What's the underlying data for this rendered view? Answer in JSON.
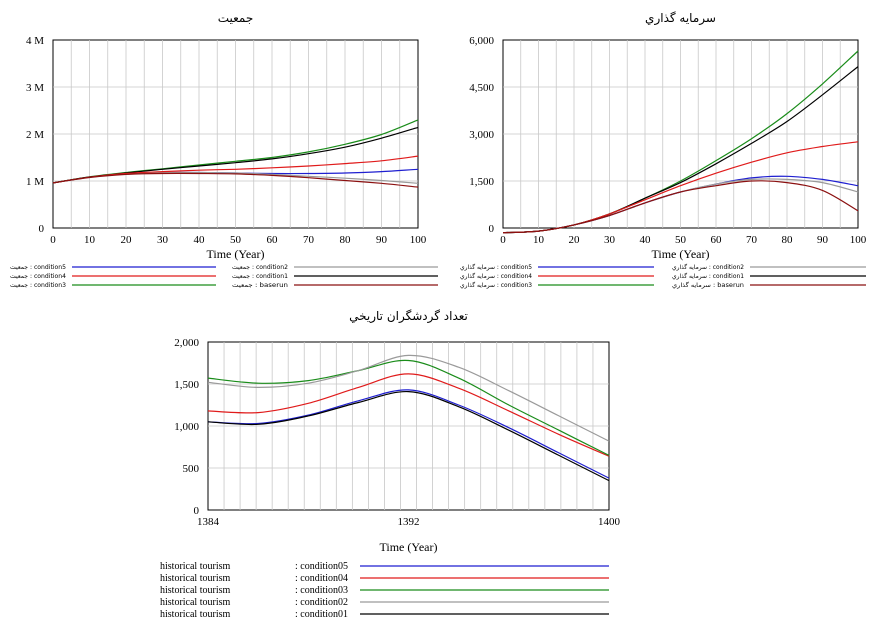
{
  "colors": {
    "condition5": "#1f1fd0",
    "condition4": "#e01b1b",
    "condition3": "#1a8c1a",
    "condition2": "#9a9a9a",
    "condition1": "#000000",
    "baserun": "#8b1010"
  },
  "chart_data": [
    {
      "id": "population",
      "type": "line",
      "title": "جمعيت",
      "xlabel": "Time (Year)",
      "ylabel": "",
      "xlim": [
        0,
        100
      ],
      "ylim": [
        0,
        4000000
      ],
      "grid": true,
      "x_ticks": [
        "0",
        "10",
        "20",
        "30",
        "40",
        "50",
        "60",
        "70",
        "80",
        "90",
        "100"
      ],
      "y_ticks": [
        "0",
        "1 M",
        "2 M",
        "3 M",
        "4 M"
      ],
      "x": [
        0,
        10,
        20,
        30,
        40,
        50,
        60,
        70,
        80,
        90,
        100
      ],
      "series": [
        {
          "key": "condition5",
          "values": [
            960000,
            1080000,
            1150000,
            1180000,
            1180000,
            1170000,
            1160000,
            1160000,
            1170000,
            1200000,
            1250000
          ]
        },
        {
          "key": "condition2",
          "values": [
            960000,
            1080000,
            1150000,
            1180000,
            1180000,
            1170000,
            1140000,
            1100000,
            1060000,
            1010000,
            950000
          ]
        },
        {
          "key": "condition3",
          "values": [
            960000,
            1090000,
            1180000,
            1260000,
            1340000,
            1420000,
            1500000,
            1620000,
            1780000,
            1990000,
            2300000
          ]
        },
        {
          "key": "condition1",
          "values": [
            960000,
            1085000,
            1170000,
            1250000,
            1320000,
            1390000,
            1470000,
            1580000,
            1720000,
            1910000,
            2140000
          ]
        },
        {
          "key": "condition4",
          "values": [
            960000,
            1080000,
            1160000,
            1200000,
            1230000,
            1250000,
            1280000,
            1320000,
            1370000,
            1430000,
            1530000
          ]
        },
        {
          "key": "baserun",
          "values": [
            960000,
            1075000,
            1140000,
            1160000,
            1160000,
            1150000,
            1120000,
            1070000,
            1010000,
            950000,
            870000
          ]
        }
      ],
      "legend": [
        {
          "key": "condition5",
          "text": "جمعيت : condition5"
        },
        {
          "key": "condition2",
          "text": "جمعيت : condition2"
        },
        {
          "key": "condition4",
          "text": "جمعيت : condition4"
        },
        {
          "key": "condition1",
          "text": "جمعيت : condition1"
        },
        {
          "key": "condition3",
          "text": "جمعيت : condition3"
        },
        {
          "key": "baserun",
          "text": "جمعيت : baserun"
        }
      ]
    },
    {
      "id": "investment",
      "type": "line",
      "title": "سرمايه گذاري",
      "xlabel": "Time (Year)",
      "ylabel": "",
      "xlim": [
        0,
        100
      ],
      "ylim": [
        0,
        6000
      ],
      "grid": true,
      "x_ticks": [
        "0",
        "10",
        "20",
        "30",
        "40",
        "50",
        "60",
        "70",
        "80",
        "90",
        "100"
      ],
      "y_ticks": [
        "0",
        "1,500",
        "3,000",
        "4,500",
        "6,000"
      ],
      "x": [
        0,
        10,
        20,
        30,
        40,
        50,
        60,
        70,
        80,
        90,
        100
      ],
      "series": [
        {
          "key": "condition5",
          "values": [
            -150,
            -100,
            100,
            400,
            800,
            1150,
            1400,
            1600,
            1650,
            1550,
            1350
          ]
        },
        {
          "key": "condition2",
          "values": [
            -150,
            -100,
            100,
            400,
            800,
            1150,
            1400,
            1550,
            1550,
            1450,
            1150
          ]
        },
        {
          "key": "condition3",
          "values": [
            -150,
            -100,
            100,
            450,
            950,
            1500,
            2150,
            2850,
            3650,
            4600,
            5650
          ]
        },
        {
          "key": "condition1",
          "values": [
            -150,
            -100,
            100,
            450,
            950,
            1450,
            2050,
            2700,
            3400,
            4250,
            5150
          ]
        },
        {
          "key": "condition4",
          "values": [
            -150,
            -100,
            100,
            450,
            900,
            1350,
            1750,
            2100,
            2400,
            2600,
            2750
          ]
        },
        {
          "key": "baserun",
          "values": [
            -150,
            -100,
            100,
            400,
            800,
            1150,
            1350,
            1500,
            1450,
            1200,
            550
          ]
        }
      ],
      "legend": [
        {
          "key": "condition5",
          "text": "سرمايه گذاري : condition5"
        },
        {
          "key": "condition2",
          "text": "سرمايه گذاري : condition2"
        },
        {
          "key": "condition4",
          "text": "سرمايه گذاري : condition4"
        },
        {
          "key": "condition1",
          "text": "سرمايه گذاري : condition1"
        },
        {
          "key": "condition3",
          "text": "سرمايه گذاري : condition3"
        },
        {
          "key": "baserun",
          "text": "سرمايه گذاري : baserun"
        }
      ]
    },
    {
      "id": "tourism",
      "type": "line",
      "title": "تعداد گردشگران تاريخي",
      "xlabel": "Time (Year)",
      "ylabel": "",
      "xlim": [
        1384,
        1400
      ],
      "ylim": [
        0,
        2000
      ],
      "grid": true,
      "x_ticks": [
        "1384",
        "1392",
        "1400"
      ],
      "y_ticks": [
        "0",
        "500",
        "1,000",
        "1,500",
        "2,000"
      ],
      "x": [
        1384,
        1386,
        1388,
        1390,
        1392,
        1394,
        1396,
        1398,
        1400
      ],
      "series": [
        {
          "key": "condition5",
          "values": [
            1050,
            1030,
            1130,
            1300,
            1430,
            1250,
            980,
            680,
            380
          ]
        },
        {
          "key": "condition4",
          "values": [
            1180,
            1160,
            1270,
            1460,
            1620,
            1450,
            1180,
            900,
            640
          ]
        },
        {
          "key": "condition3",
          "values": [
            1570,
            1510,
            1540,
            1660,
            1780,
            1570,
            1250,
            950,
            650
          ]
        },
        {
          "key": "condition2",
          "values": [
            1520,
            1460,
            1510,
            1660,
            1840,
            1700,
            1420,
            1120,
            820
          ]
        },
        {
          "key": "condition1",
          "values": [
            1050,
            1020,
            1120,
            1280,
            1410,
            1230,
            950,
            650,
            350
          ]
        }
      ],
      "legend": [
        {
          "key": "condition5",
          "label": "historical tourism",
          "tag": ": condition05"
        },
        {
          "key": "condition4",
          "label": "historical tourism",
          "tag": ": condition04"
        },
        {
          "key": "condition3",
          "label": "historical tourism",
          "tag": ": condition03"
        },
        {
          "key": "condition2",
          "label": "historical tourism",
          "tag": ": condition02"
        },
        {
          "key": "condition1",
          "label": "historical tourism",
          "tag": ": condition01"
        }
      ]
    }
  ]
}
